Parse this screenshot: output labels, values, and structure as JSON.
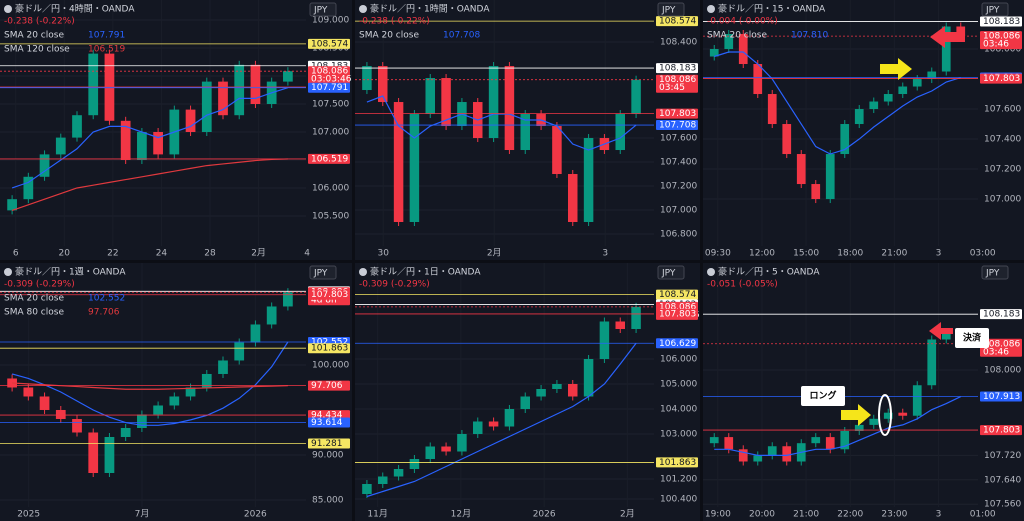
{
  "panels": [
    {
      "title": "豪ドル／円・4時間・OANDA",
      "change": "-0.238 (-0.22%)",
      "currency": "JPY",
      "legends": [
        {
          "name": "SMA 20 close",
          "value": "107.791",
          "color": "#2962ff"
        },
        {
          "name": "SMA 120 close",
          "value": "106.519",
          "color": "#e0393e"
        }
      ],
      "ylim": [
        105.071,
        109.179
      ],
      "yticks": [
        {
          "value": 109,
          "label": "109.000"
        },
        {
          "value": 108.5,
          "label": "108.500"
        },
        {
          "value": 108,
          "label": "108.000"
        },
        {
          "value": 107.5,
          "label": "107.500"
        },
        {
          "value": 107,
          "label": "107.000"
        },
        {
          "value": 106.5,
          "label": "106.500"
        },
        {
          "value": 106,
          "label": "106.000"
        },
        {
          "value": 105.5,
          "label": "105.500"
        }
      ],
      "xticks": [
        "6",
        "20",
        "22",
        "24",
        "28",
        "2月",
        "4"
      ],
      "opens": [
        105.6,
        105.8,
        106.2,
        106.6,
        106.9,
        107.3,
        108.4,
        107.2,
        106.5,
        107.0,
        106.6,
        107.4,
        107.0,
        107.9,
        107.3,
        108.2,
        107.5,
        107.9
      ],
      "closes": [
        105.8,
        106.2,
        106.6,
        106.9,
        107.3,
        108.4,
        107.2,
        106.5,
        107.0,
        106.6,
        107.4,
        107.0,
        107.9,
        107.3,
        108.2,
        107.5,
        107.9,
        108.086
      ],
      "sma": [
        106.0,
        106.1,
        106.3,
        106.5,
        106.7,
        107.0,
        107.1,
        107.1,
        107.0,
        106.9,
        107.0,
        107.1,
        107.3,
        107.4,
        107.6,
        107.6,
        107.7,
        107.791
      ],
      "sma2": [
        105.6,
        105.7,
        105.8,
        105.9,
        106.0,
        106.05,
        106.1,
        106.15,
        106.2,
        106.25,
        106.3,
        106.35,
        106.4,
        106.43,
        106.46,
        106.49,
        106.51,
        106.519
      ],
      "tags": [
        {
          "value": 108.574,
          "label": "108.574",
          "color": "#f5e663"
        },
        {
          "value": 108.183,
          "label": "108.183",
          "color": "#ffffff"
        },
        {
          "value": 108.086,
          "label": "108.086",
          "time": "03:03:46",
          "color": "#f23645"
        },
        {
          "value": 107.803,
          "label": "107.803",
          "color": "#f23645"
        },
        {
          "value": 107.791,
          "label": "107.791",
          "color": "#2962ff"
        },
        {
          "value": 106.519,
          "label": "106.519",
          "color": "#f23645"
        }
      ]
    },
    {
      "title": "豪ドル／円・1時間・OANDA",
      "change": "-0.238 (-0.22%)",
      "currency": "JPY",
      "legends": [
        {
          "name": "SMA 20 close",
          "value": "107.708",
          "color": "#2962ff"
        }
      ],
      "ylim": [
        106.75,
        108.667
      ],
      "yticks": [
        {
          "value": 108.4,
          "label": "108.400"
        },
        {
          "value": 107.6,
          "label": "107.600"
        },
        {
          "value": 107.4,
          "label": "107.400"
        },
        {
          "value": 107.2,
          "label": "107.200"
        },
        {
          "value": 107,
          "label": "107.000"
        },
        {
          "value": 106.8,
          "label": "106.800"
        }
      ],
      "xticks": [
        "30",
        "2月",
        "3"
      ],
      "opens": [
        108.0,
        108.2,
        107.9,
        106.9,
        107.8,
        108.1,
        107.7,
        107.9,
        107.6,
        108.2,
        107.5,
        107.8,
        107.7,
        107.3,
        106.9,
        107.6,
        107.5,
        107.8
      ],
      "closes": [
        108.2,
        107.9,
        106.9,
        107.8,
        108.1,
        107.7,
        107.9,
        107.6,
        108.2,
        107.5,
        107.8,
        107.7,
        107.3,
        106.9,
        107.6,
        107.5,
        107.8,
        108.086
      ],
      "sma": [
        107.9,
        107.95,
        107.7,
        107.6,
        107.7,
        107.75,
        107.8,
        107.75,
        107.8,
        107.8,
        107.75,
        107.75,
        107.7,
        107.55,
        107.5,
        107.55,
        107.6,
        107.708
      ],
      "tags": [
        {
          "value": 108.574,
          "label": "108.574",
          "color": "#f5e663"
        },
        {
          "value": 108.183,
          "label": "108.183",
          "color": "#ffffff"
        },
        {
          "value": 108.086,
          "label": "108.086",
          "time": "03:45",
          "color": "#f23645"
        },
        {
          "value": 107.803,
          "label": "107.803",
          "color": "#f23645"
        },
        {
          "value": 107.708,
          "label": "107.708",
          "color": "#2962ff"
        }
      ]
    },
    {
      "title": "豪ドル／円・15・OANDA",
      "change": "-0.004 (-0.00%)",
      "currency": "JPY",
      "legends": [
        {
          "name": "SMA 20 close",
          "value": "107.810",
          "color": "#2962ff"
        }
      ],
      "ylim": [
        106.727,
        108.26
      ],
      "yticks": [
        {
          "value": 108,
          "label": "108.000"
        },
        {
          "value": 107.6,
          "label": "107.600"
        },
        {
          "value": 107.4,
          "label": "107.400"
        },
        {
          "value": 107.2,
          "label": "107.200"
        },
        {
          "value": 107,
          "label": "107.000"
        }
      ],
      "xticks": [
        "09:30",
        "12:00",
        "15:00",
        "18:00",
        "21:00",
        "3",
        "03:00"
      ],
      "opens": [
        107.95,
        108.0,
        108.1,
        107.9,
        107.7,
        107.5,
        107.3,
        107.1,
        107.0,
        107.3,
        107.5,
        107.6,
        107.65,
        107.7,
        107.75,
        107.8,
        107.85,
        108.15
      ],
      "closes": [
        108.0,
        108.1,
        107.9,
        107.7,
        107.5,
        107.3,
        107.1,
        107.0,
        107.3,
        107.5,
        107.6,
        107.65,
        107.7,
        107.75,
        107.8,
        107.85,
        108.15,
        108.086
      ],
      "sma": [
        107.95,
        107.98,
        107.98,
        107.9,
        107.8,
        107.65,
        107.5,
        107.35,
        107.3,
        107.33,
        107.4,
        107.48,
        107.55,
        107.62,
        107.68,
        107.72,
        107.78,
        107.81
      ],
      "tags": [
        {
          "value": 108.183,
          "label": "108.183",
          "color": "#ffffff"
        },
        {
          "value": 108.086,
          "label": "108.086",
          "time": "03:46",
          "color": "#f23645"
        },
        {
          "value": 107.81,
          "label": "107.810",
          "color": "#2962ff"
        },
        {
          "value": 107.803,
          "label": "107.803",
          "color": "#f23645"
        }
      ]
    },
    {
      "title": "豪ドル／円・1週・OANDA",
      "change": "-0.309 (-0.29%)",
      "currency": "JPY",
      "legends": [
        {
          "name": "SMA 20 close",
          "value": "102.552",
          "color": "#2962ff"
        },
        {
          "name": "SMA 80 close",
          "value": "97.706",
          "color": "#e0393e"
        }
      ],
      "ylim": [
        83.89,
        109.44
      ],
      "yticks": [
        {
          "value": 100,
          "label": "100.000"
        },
        {
          "value": 90,
          "label": "90.000"
        },
        {
          "value": 85,
          "label": "85.000"
        }
      ],
      "xticks": [
        "2025",
        "7月",
        "2026"
      ],
      "opens": [
        98.5,
        97.5,
        96.5,
        95.0,
        94.0,
        92.5,
        88.0,
        92.0,
        93.0,
        94.5,
        95.5,
        96.5,
        97.5,
        99.0,
        100.5,
        102.5,
        104.5,
        106.5
      ],
      "closes": [
        97.5,
        96.5,
        95.0,
        94.0,
        92.5,
        88.0,
        92.0,
        93.0,
        94.5,
        95.5,
        96.5,
        97.5,
        99.0,
        100.5,
        102.5,
        104.5,
        106.5,
        108.086
      ],
      "sma": [
        99.0,
        98.5,
        97.8,
        97.0,
        96.0,
        95.0,
        94.2,
        93.6,
        93.3,
        93.3,
        93.5,
        93.9,
        94.4,
        95.2,
        96.3,
        97.8,
        99.8,
        102.552
      ],
      "sma2": [
        98.0,
        97.9,
        97.8,
        97.7,
        97.6,
        97.5,
        97.4,
        97.3,
        97.3,
        97.3,
        97.35,
        97.4,
        97.45,
        97.5,
        97.55,
        97.6,
        97.65,
        97.706
      ],
      "tags": [
        {
          "value": 108.183,
          "label": "108.183",
          "color": "#ffffff"
        },
        {
          "value": 108.086,
          "label": "108.086",
          "time": "4d 8h",
          "color": "#f23645"
        },
        {
          "value": 107.803,
          "label": "107.803",
          "color": "#f23645"
        },
        {
          "value": 102.552,
          "label": "102.552",
          "color": "#2962ff"
        },
        {
          "value": 101.863,
          "label": "101.863",
          "color": "#f5e663"
        },
        {
          "value": 97.706,
          "label": "97.706",
          "color": "#f23645"
        },
        {
          "value": 94.434,
          "label": "94.434",
          "color": "#f23645"
        },
        {
          "value": 93.614,
          "label": "93.614",
          "color": "#2962ff"
        },
        {
          "value": 91.281,
          "label": "91.281",
          "color": "#f5e663"
        }
      ]
    },
    {
      "title": "豪ドル／円・1日・OANDA",
      "change": "-0.309 (-0.29%)",
      "currency": "JPY",
      "legends": [],
      "ylim": [
        99.96,
        109.16
      ],
      "yticks": [
        {
          "value": 106,
          "label": "106.000"
        },
        {
          "value": 105,
          "label": "105.000"
        },
        {
          "value": 104,
          "label": "104.000"
        },
        {
          "value": 103,
          "label": "103.000"
        },
        {
          "value": 101.2,
          "label": "101.200"
        },
        {
          "value": 100.4,
          "label": "100.400"
        }
      ],
      "xticks": [
        "11月",
        "12月",
        "2026",
        "2月"
      ],
      "opens": [
        100.6,
        101.0,
        101.3,
        101.6,
        102.0,
        102.5,
        102.3,
        103.0,
        103.5,
        103.3,
        104.0,
        104.5,
        104.8,
        105.0,
        104.5,
        106.0,
        107.5,
        107.2
      ],
      "closes": [
        101.0,
        101.3,
        101.6,
        102.0,
        102.5,
        102.3,
        103.0,
        103.5,
        103.3,
        104.0,
        104.5,
        104.8,
        105.0,
        104.5,
        106.0,
        107.5,
        107.2,
        108.086
      ],
      "sma": [
        100.5,
        100.7,
        100.9,
        101.1,
        101.4,
        101.7,
        102.0,
        102.3,
        102.6,
        102.9,
        103.2,
        103.5,
        103.8,
        104.1,
        104.5,
        105.0,
        105.8,
        106.629
      ],
      "tags": [
        {
          "value": 108.574,
          "label": "108.574",
          "color": "#f5e663"
        },
        {
          "value": 108.183,
          "label": "108.183",
          "color": "#ffffff"
        },
        {
          "value": 108.086,
          "label": "108.086",
          "time": "07:03:46",
          "color": "#f23645"
        },
        {
          "value": 107.803,
          "label": "107.803",
          "color": "#f23645"
        },
        {
          "value": 106.629,
          "label": "106.629",
          "color": "#2962ff"
        },
        {
          "value": 101.863,
          "label": "101.863",
          "color": "#f5e663"
        }
      ]
    },
    {
      "title": "豪ドル／円・5・OANDA",
      "change": "-0.051 (-0.05%)",
      "currency": "JPY",
      "legends": [],
      "ylim": [
        107.541,
        108.295
      ],
      "yticks": [
        {
          "value": 108,
          "label": "108.000"
        },
        {
          "value": 107.72,
          "label": "107.720"
        },
        {
          "value": 107.64,
          "label": "107.640"
        },
        {
          "value": 107.56,
          "label": "107.560"
        }
      ],
      "xticks": [
        "19:00",
        "20:00",
        "21:00",
        "22:00",
        "23:00",
        "3",
        "01:00"
      ],
      "opens": [
        107.76,
        107.78,
        107.74,
        107.7,
        107.72,
        107.75,
        107.7,
        107.76,
        107.78,
        107.74,
        107.8,
        107.82,
        107.84,
        107.86,
        107.85,
        107.95,
        108.1,
        108.12
      ],
      "closes": [
        107.78,
        107.74,
        107.7,
        107.72,
        107.75,
        107.7,
        107.76,
        107.78,
        107.74,
        107.8,
        107.82,
        107.84,
        107.86,
        107.85,
        107.95,
        108.1,
        108.12,
        108.086
      ],
      "sma": [
        107.74,
        107.74,
        107.73,
        107.72,
        107.72,
        107.72,
        107.73,
        107.74,
        107.74,
        107.75,
        107.77,
        107.79,
        107.81,
        107.82,
        107.84,
        107.87,
        107.89,
        107.913
      ],
      "tags": [
        {
          "value": 108.183,
          "label": "108.183",
          "color": "#ffffff"
        },
        {
          "value": 108.086,
          "label": "108.086",
          "time": "03:46",
          "color": "#f23645"
        },
        {
          "value": 107.913,
          "label": "107.913",
          "color": "#2962ff"
        },
        {
          "value": 107.803,
          "label": "107.803",
          "color": "#f23645"
        }
      ],
      "annotations": [
        "ロング",
        "決済"
      ]
    }
  ]
}
